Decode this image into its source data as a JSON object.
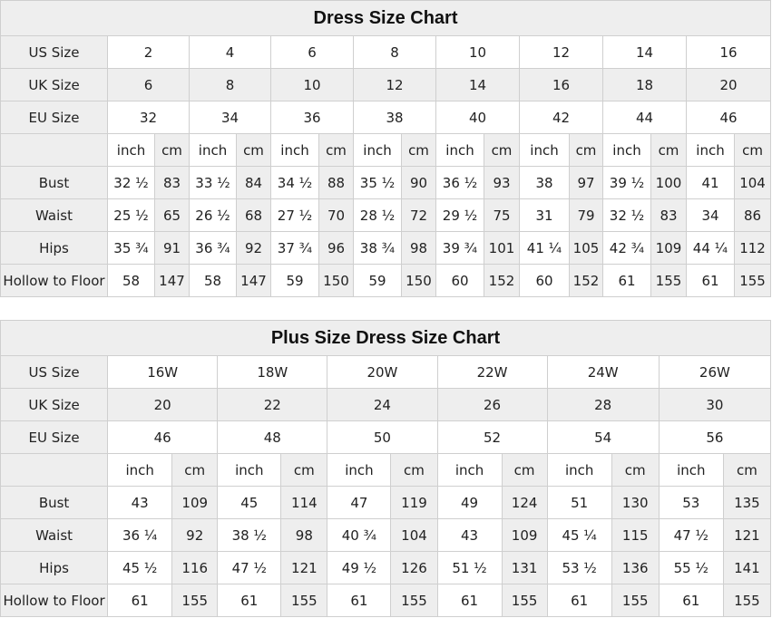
{
  "tables": [
    {
      "title": "Dress Size Chart",
      "row_labels": {
        "us": "US Size",
        "uk": "UK Size",
        "eu": "EU Size"
      },
      "us": [
        "2",
        "4",
        "6",
        "8",
        "10",
        "12",
        "14",
        "16"
      ],
      "uk": [
        "6",
        "8",
        "10",
        "12",
        "14",
        "16",
        "18",
        "20"
      ],
      "eu": [
        "32",
        "34",
        "36",
        "38",
        "40",
        "42",
        "44",
        "46"
      ],
      "unit_labels": {
        "inch": "inch",
        "cm": "cm"
      },
      "measurements": [
        {
          "label": "Bust",
          "values": [
            [
              "32 ½",
              "83"
            ],
            [
              "33 ½",
              "84"
            ],
            [
              "34 ½",
              "88"
            ],
            [
              "35 ½",
              "90"
            ],
            [
              "36 ½",
              "93"
            ],
            [
              "38",
              "97"
            ],
            [
              "39 ½",
              "100"
            ],
            [
              "41",
              "104"
            ]
          ]
        },
        {
          "label": "Waist",
          "values": [
            [
              "25 ½",
              "65"
            ],
            [
              "26 ½",
              "68"
            ],
            [
              "27 ½",
              "70"
            ],
            [
              "28 ½",
              "72"
            ],
            [
              "29 ½",
              "75"
            ],
            [
              "31",
              "79"
            ],
            [
              "32 ½",
              "83"
            ],
            [
              "34",
              "86"
            ]
          ]
        },
        {
          "label": "Hips",
          "values": [
            [
              "35 ¾",
              "91"
            ],
            [
              "36 ¾",
              "92"
            ],
            [
              "37 ¾",
              "96"
            ],
            [
              "38 ¾",
              "98"
            ],
            [
              "39 ¾",
              "101"
            ],
            [
              "41 ¼",
              "105"
            ],
            [
              "42 ¾",
              "109"
            ],
            [
              "44 ¼",
              "112"
            ]
          ]
        },
        {
          "label": "Hollow to Floor",
          "values": [
            [
              "58",
              "147"
            ],
            [
              "58",
              "147"
            ],
            [
              "59",
              "150"
            ],
            [
              "59",
              "150"
            ],
            [
              "60",
              "152"
            ],
            [
              "60",
              "152"
            ],
            [
              "61",
              "155"
            ],
            [
              "61",
              "155"
            ]
          ]
        }
      ]
    },
    {
      "title": "Plus Size Dress Size Chart",
      "row_labels": {
        "us": "US Size",
        "uk": "UK Size",
        "eu": "EU Size"
      },
      "us": [
        "16W",
        "18W",
        "20W",
        "22W",
        "24W",
        "26W"
      ],
      "uk": [
        "20",
        "22",
        "24",
        "26",
        "28",
        "30"
      ],
      "eu": [
        "46",
        "48",
        "50",
        "52",
        "54",
        "56"
      ],
      "unit_labels": {
        "inch": "inch",
        "cm": "cm"
      },
      "measurements": [
        {
          "label": "Bust",
          "values": [
            [
              "43",
              "109"
            ],
            [
              "45",
              "114"
            ],
            [
              "47",
              "119"
            ],
            [
              "49",
              "124"
            ],
            [
              "51",
              "130"
            ],
            [
              "53",
              "135"
            ]
          ]
        },
        {
          "label": "Waist",
          "values": [
            [
              "36 ¼",
              "92"
            ],
            [
              "38 ½",
              "98"
            ],
            [
              "40 ¾",
              "104"
            ],
            [
              "43",
              "109"
            ],
            [
              "45 ¼",
              "115"
            ],
            [
              "47 ½",
              "121"
            ]
          ]
        },
        {
          "label": "Hips",
          "values": [
            [
              "45 ½",
              "116"
            ],
            [
              "47 ½",
              "121"
            ],
            [
              "49 ½",
              "126"
            ],
            [
              "51 ½",
              "131"
            ],
            [
              "53 ½",
              "136"
            ],
            [
              "55 ½",
              "141"
            ]
          ]
        },
        {
          "label": "Hollow to Floor",
          "values": [
            [
              "61",
              "155"
            ],
            [
              "61",
              "155"
            ],
            [
              "61",
              "155"
            ],
            [
              "61",
              "155"
            ],
            [
              "61",
              "155"
            ],
            [
              "61",
              "155"
            ]
          ]
        }
      ]
    }
  ]
}
